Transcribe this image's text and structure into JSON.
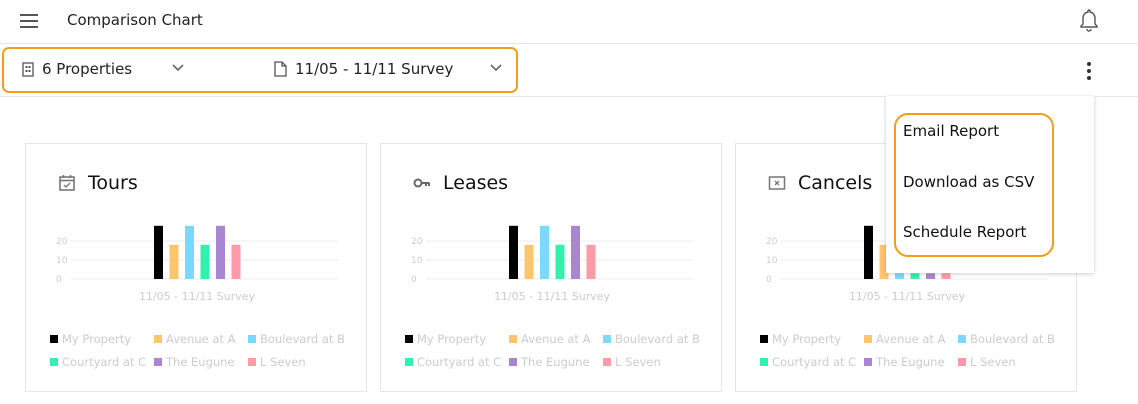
{
  "header": {
    "title": "Comparison Chart"
  },
  "toolbar": {
    "properties": "6 Properties",
    "survey": "11/05 - 11/11 Survey"
  },
  "menu": {
    "items": [
      "Email Report",
      "Download as CSV",
      "Schedule Report"
    ]
  },
  "series_colors": [
    "#000000",
    "#ffc56b",
    "#7ad9fc",
    "#33f1ac",
    "#a985d2",
    "#ff9aa8"
  ],
  "chart_data": [
    {
      "type": "bar",
      "title": "Tours",
      "icon": "calendar-check-icon",
      "categories": [
        "11/05 - 11/11 Survey"
      ],
      "xlabel": "11/05 - 11/11 Survey",
      "yticks": [
        "0",
        "10",
        "20"
      ],
      "ylim": [
        0,
        30
      ],
      "series": [
        {
          "name": "My Property",
          "values": [
            28
          ]
        },
        {
          "name": "Avenue at A",
          "values": [
            18
          ]
        },
        {
          "name": "Boulevard at B",
          "values": [
            28
          ]
        },
        {
          "name": "Courtyard at C",
          "values": [
            18
          ]
        },
        {
          "name": "The Eugune",
          "values": [
            28
          ]
        },
        {
          "name": "L Seven",
          "values": [
            18
          ]
        }
      ]
    },
    {
      "type": "bar",
      "title": "Leases",
      "icon": "key-icon",
      "categories": [
        "11/05 - 11/11 Survey"
      ],
      "xlabel": "11/05 - 11/11 Survey",
      "yticks": [
        "0",
        "10",
        "20"
      ],
      "ylim": [
        0,
        30
      ],
      "series": [
        {
          "name": "My Property",
          "values": [
            28
          ]
        },
        {
          "name": "Avenue at A",
          "values": [
            18
          ]
        },
        {
          "name": "Boulevard at B",
          "values": [
            28
          ]
        },
        {
          "name": "Courtyard at C",
          "values": [
            18
          ]
        },
        {
          "name": "The Eugune",
          "values": [
            28
          ]
        },
        {
          "name": "L Seven",
          "values": [
            18
          ]
        }
      ]
    },
    {
      "type": "bar",
      "title": "Cancels",
      "icon": "x-box-icon",
      "categories": [
        "11/05 - 11/11 Survey"
      ],
      "xlabel": "11/05 - 11/11 Survey",
      "yticks": [
        "0",
        "10",
        "20"
      ],
      "ylim": [
        0,
        30
      ],
      "series": [
        {
          "name": "My Property",
          "values": [
            28
          ]
        },
        {
          "name": "Avenue at A",
          "values": [
            18
          ]
        },
        {
          "name": "Boulevard at B",
          "values": [
            3
          ]
        },
        {
          "name": "Courtyard at C",
          "values": [
            3
          ]
        },
        {
          "name": "The Eugune",
          "values": [
            3
          ]
        },
        {
          "name": "L Seven",
          "values": [
            3
          ]
        }
      ]
    }
  ]
}
